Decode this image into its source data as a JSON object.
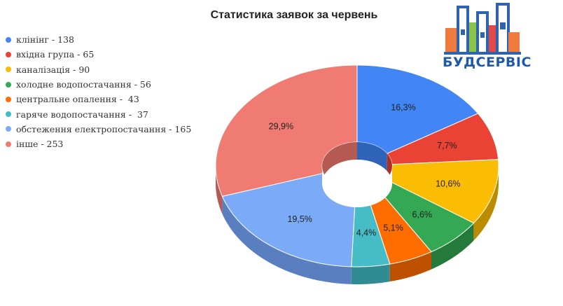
{
  "chart_data": {
    "type": "pie",
    "title": "Статистика заявок за червень",
    "legend_position": "left",
    "slices": [
      {
        "legend": "клінінг - 138",
        "value": 138,
        "percent": "16,3%",
        "color": "#4285f4",
        "side": "#2f63b8"
      },
      {
        "legend": "вхідна група - 65",
        "value": 65,
        "percent": "7,7%",
        "color": "#ea4335",
        "side": "#ad2f25"
      },
      {
        "legend": "каналізація - 90",
        "value": 90,
        "percent": "10,6%",
        "color": "#fbbc04",
        "side": "#bb8b00"
      },
      {
        "legend": "холодне водопостачання - 56",
        "value": 56,
        "percent": "6,6%",
        "color": "#34a853",
        "side": "#247a3b"
      },
      {
        "legend": "центральне опалення -  43",
        "value": 43,
        "percent": "5,1%",
        "color": "#ff6d01",
        "side": "#bf5000"
      },
      {
        "legend": "гаряче водопостачання -  37",
        "value": 37,
        "percent": "4,4%",
        "color": "#46bdc6",
        "side": "#318b92"
      },
      {
        "legend": "обстеження електропостачання - 165",
        "value": 165,
        "percent": "19,5%",
        "color": "#7baaf7",
        "side": "#5a7fc0"
      },
      {
        "legend": "інше - 253",
        "value": 253,
        "percent": "29,9%",
        "color": "#f07b72",
        "side": "#b45a53"
      }
    ]
  },
  "logo": {
    "text": "БУДСЕРВІС",
    "colors": [
      "#2e63b0",
      "#f07b3f",
      "#8bc34a",
      "#e24a4a"
    ]
  }
}
